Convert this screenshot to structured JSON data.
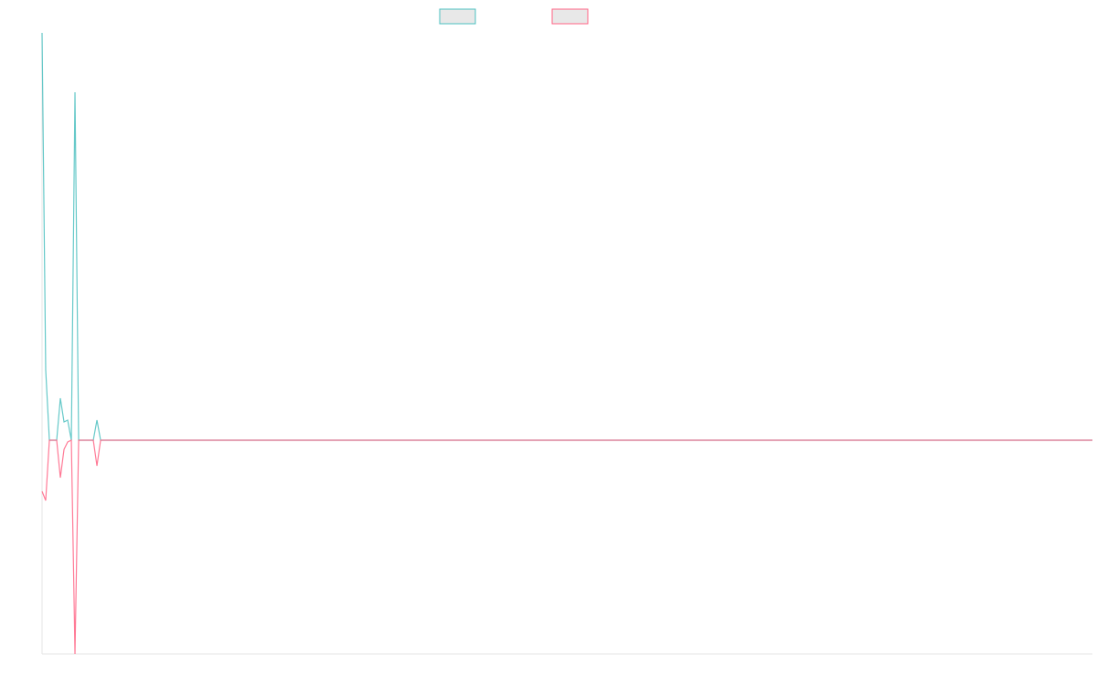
{
  "chart_data": {
    "type": "line",
    "x": [
      0,
      1,
      2,
      3,
      4,
      5,
      6,
      7,
      8,
      9,
      10,
      11,
      12,
      13,
      14,
      15,
      16,
      287
    ],
    "xlim": [
      0,
      287
    ],
    "ylim": [
      -23.4,
      44.6
    ],
    "series": [
      {
        "color": "#4bc0c0",
        "values": [
          44.6,
          7.7,
          0,
          0,
          0,
          4.6,
          2.0,
          2.2,
          0,
          38.1,
          0,
          0,
          0,
          0,
          0,
          2.2,
          0,
          0
        ]
      },
      {
        "color": "#ff6384",
        "values": [
          -5.6,
          -6.6,
          0,
          0,
          0,
          -4.1,
          -1.0,
          -0.2,
          0,
          -23.4,
          0,
          0,
          0,
          0,
          0,
          -2.8,
          0,
          0
        ]
      }
    ]
  }
}
